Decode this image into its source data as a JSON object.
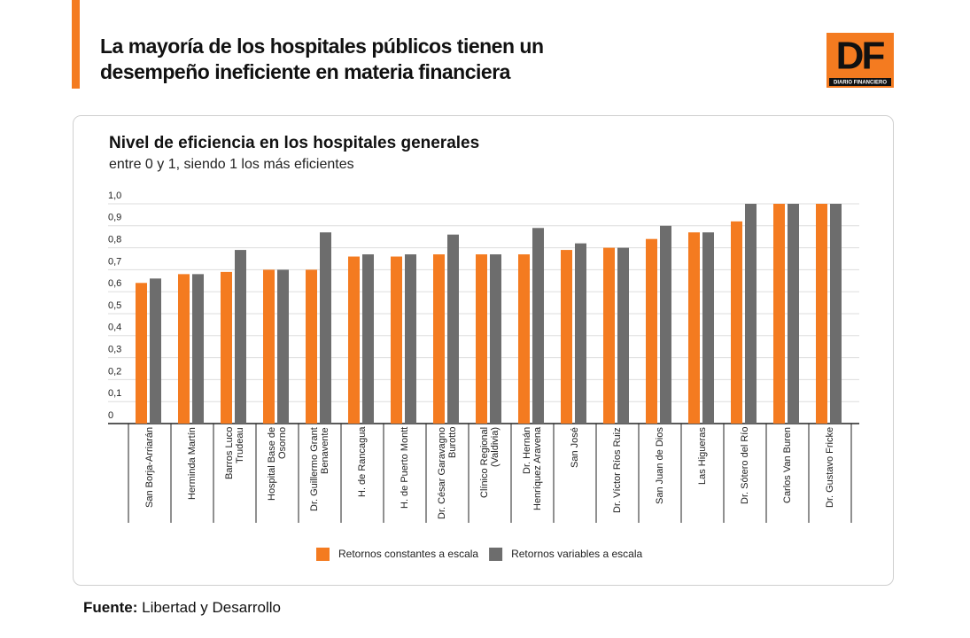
{
  "header": {
    "title": "La mayoría de los hospitales públicos tienen un\ndesempeño ineficiente en materia financiera"
  },
  "logo": {
    "text": "DF",
    "subtext": "DIARIO FINANCIERO"
  },
  "chart_data": {
    "type": "bar",
    "title": "Nivel de eficiencia en los hospitales generales",
    "subtitle": "entre 0 y 1, siendo 1 los más eficientes",
    "categories": [
      "San Borja-Arriarán",
      "Herminda Martín",
      "Barros Luco\nTrudeau",
      "Hospital Base de\nOsorno",
      "Dr. Guillermo Grant\nBenavente",
      "H. de Rancagua",
      "H. de Puerto Montt",
      "Dr. César Garavagno\nBurotto",
      "Clínico Regional\n(Valdivia)",
      "Dr. Hernán\nHenríquez Aravena",
      "San José",
      "Dr. Víctor Ríos Ruiz",
      "San Juan de Dios",
      "Las Higueras",
      "Dr. Sótero del Río",
      "Carlos Van Buren",
      "Dr. Gustavo Fricke"
    ],
    "series": [
      {
        "name": "Retornos constantes a escala",
        "color": "#f47b20",
        "values": [
          0.64,
          0.68,
          0.69,
          0.7,
          0.7,
          0.76,
          0.76,
          0.77,
          0.77,
          0.77,
          0.79,
          0.8,
          0.84,
          0.87,
          0.92,
          1.0,
          1.0
        ]
      },
      {
        "name": "Retornos variables a escala",
        "color": "#6d6d6d",
        "values": [
          0.66,
          0.68,
          0.79,
          0.7,
          0.87,
          0.77,
          0.77,
          0.86,
          0.77,
          0.89,
          0.82,
          0.8,
          0.9,
          0.87,
          1.0,
          1.0,
          1.0
        ]
      }
    ],
    "ylim": [
      0,
      1
    ],
    "yticks": [
      0,
      {
        "value": 0.1,
        "label": "0,1"
      },
      {
        "value": 0.2,
        "label": "0,2"
      },
      {
        "value": 0.3,
        "label": "0,3"
      },
      {
        "value": 0.4,
        "label": "0,4"
      },
      {
        "value": 0.5,
        "label": "0,5"
      },
      {
        "value": 0.6,
        "label": "0,6"
      },
      {
        "value": 0.7,
        "label": "0,7"
      },
      {
        "value": 0.8,
        "label": "0,8"
      },
      {
        "value": 0.9,
        "label": "0,9"
      },
      {
        "value": 1,
        "label": "1,0"
      }
    ],
    "grid": true
  },
  "source": {
    "label": "Fuente:",
    "text": "Libertad y Desarrollo"
  }
}
